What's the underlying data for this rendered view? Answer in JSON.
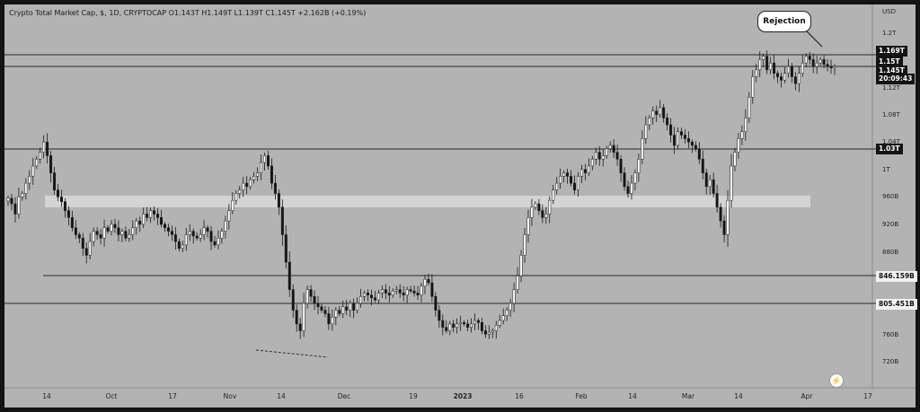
{
  "header": {
    "legend": "Crypto Total Market Cap, $, 1D, CRYPTOCAP  O1.143T  H1.149T  L1.139T  C1.145T  +2.162B (+0.19%)"
  },
  "annotation": {
    "callout": "Rejection"
  },
  "price_axis": {
    "currency": "USD",
    "ticks": [
      "1.2T",
      "1.12T",
      "1.08T",
      "1.04T",
      "1T",
      "960B",
      "920B",
      "880B",
      "760B",
      "720B"
    ]
  },
  "price_labels": {
    "level_1169": "1.169T",
    "level_115": "1.15T",
    "current_price": "1.145T",
    "countdown": "20:09:43",
    "level_103": "1.03T",
    "level_846": "846.159B",
    "level_805": "805.451B"
  },
  "time_axis": {
    "ticks": [
      "14",
      "Oct",
      "17",
      "Nov",
      "14",
      "Dec",
      "19",
      "2023",
      "16",
      "Feb",
      "14",
      "Mar",
      "14",
      "Apr",
      "17"
    ]
  },
  "colors": {
    "background": "#b3b3b3",
    "up": "#ffffff",
    "down": "#141414",
    "zone": "#d2d2d2"
  },
  "icons": {
    "alert": "lightning-bolt-icon"
  },
  "chart_data": {
    "type": "candlestick",
    "unit": "USD",
    "ylim": [
      700000000000,
      1230000000000
    ],
    "horizontal_levels": [
      1169000000000,
      1150000000000,
      1030000000000,
      846159000000,
      805451000000
    ],
    "zone": [
      945000000000,
      962000000000
    ],
    "x_labels": [
      "14",
      "Oct",
      "17",
      "Nov",
      "14",
      "Dec",
      "19",
      "2023",
      "16",
      "Feb",
      "14",
      "Mar",
      "14",
      "Apr",
      "17"
    ],
    "last": {
      "open": 1143000000000,
      "high": 1149000000000,
      "low": 1139000000000,
      "close": 1145000000000,
      "change": "+2.162B (+0.19%)"
    },
    "closes_billions": [
      953,
      945,
      930,
      955,
      960,
      975,
      985,
      1000,
      1010,
      1020,
      1035,
      1015,
      990,
      965,
      955,
      948,
      935,
      925,
      910,
      900,
      895,
      880,
      870,
      890,
      905,
      900,
      895,
      910,
      905,
      915,
      910,
      900,
      905,
      895,
      900,
      910,
      920,
      915,
      930,
      925,
      935,
      930,
      925,
      915,
      910,
      905,
      900,
      890,
      880,
      885,
      900,
      905,
      898,
      895,
      900,
      910,
      905,
      890,
      885,
      895,
      905,
      920,
      935,
      950,
      960,
      965,
      975,
      970,
      980,
      985,
      990,
      1005,
      1015,
      1000,
      975,
      960,
      940,
      900,
      860,
      820,
      790,
      770,
      760,
      800,
      820,
      810,
      800,
      795,
      790,
      785,
      770,
      780,
      790,
      785,
      795,
      790,
      800,
      790,
      800,
      810,
      815,
      812,
      808,
      805,
      815,
      820,
      815,
      812,
      818,
      820,
      815,
      812,
      820,
      818,
      815,
      812,
      825,
      835,
      830,
      810,
      790,
      775,
      765,
      760,
      770,
      765,
      770,
      772,
      770,
      765,
      770,
      775,
      772,
      760,
      755,
      758,
      760,
      768,
      775,
      782,
      790,
      800,
      820,
      840,
      870,
      900,
      925,
      940,
      945,
      935,
      925,
      930,
      950,
      965,
      975,
      985,
      990,
      985,
      975,
      965,
      985,
      995,
      990,
      1000,
      1010,
      1020,
      1010,
      1015,
      1025,
      1030,
      1020,
      1010,
      990,
      970,
      960,
      975,
      990,
      1010,
      1040,
      1060,
      1070,
      1080,
      1075,
      1085,
      1070,
      1060,
      1045,
      1030,
      1050,
      1045,
      1040,
      1035,
      1030,
      1025,
      1010,
      990,
      970,
      980,
      960,
      940,
      920,
      900,
      950,
      1000,
      1020,
      1040,
      1050,
      1070,
      1100,
      1130,
      1140,
      1155,
      1160,
      1140,
      1150,
      1135,
      1130,
      1125,
      1135,
      1145,
      1130,
      1120,
      1135,
      1150,
      1160,
      1155,
      1145,
      1150,
      1155,
      1148,
      1145,
      1143,
      1145
    ]
  }
}
